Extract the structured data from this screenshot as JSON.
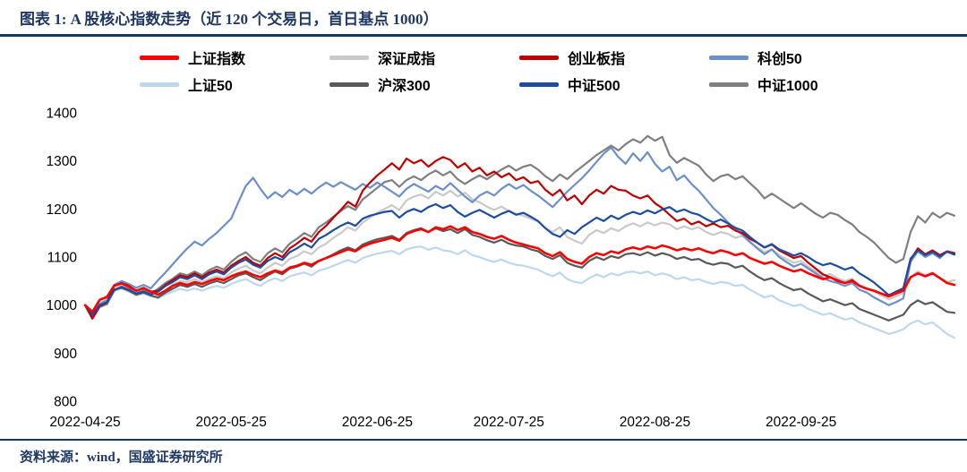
{
  "title": "图表 1: A 股核心指数走势（近 120 个交易日，首日基点 1000）",
  "footer": {
    "source": "资料来源：wind，国盛证券研究所"
  },
  "colors": {
    "navy_rule": "#17375E",
    "title_text": "#1F3864",
    "footer_text": "#1F3864"
  },
  "chart_data": {
    "type": "line",
    "title": "A 股核心指数走势（近 120 个交易日，首日基点 1000）",
    "baseline_note": "首日基点 1000",
    "n_points": 120,
    "ylim": [
      800,
      1400
    ],
    "y_ticks": [
      800,
      900,
      1000,
      1100,
      1200,
      1300,
      1400
    ],
    "x_label_dates": [
      "2022-04-25",
      "2022-05-25",
      "2022-06-25",
      "2022-07-25",
      "2022-08-25",
      "2022-09-25"
    ],
    "x_tick_indices": [
      0,
      20,
      40,
      58,
      78,
      98
    ],
    "grid": false,
    "legend_position": "top",
    "series": [
      {
        "name": "上证指数",
        "color": "#FF0000",
        "values": [
          1000,
          986,
          1011,
          1017,
          1041,
          1045,
          1038,
          1030,
          1035,
          1028,
          1022,
          1030,
          1040,
          1046,
          1042,
          1048,
          1044,
          1050,
          1055,
          1052,
          1060,
          1066,
          1070,
          1063,
          1058,
          1066,
          1072,
          1068,
          1078,
          1082,
          1088,
          1084,
          1092,
          1098,
          1104,
          1110,
          1116,
          1112,
          1122,
          1128,
          1132,
          1136,
          1140,
          1134,
          1148,
          1154,
          1158,
          1152,
          1162,
          1158,
          1164,
          1156,
          1162,
          1152,
          1148,
          1142,
          1138,
          1144,
          1136,
          1130,
          1126,
          1122,
          1118,
          1108,
          1102,
          1110,
          1096,
          1090,
          1086,
          1100,
          1108,
          1104,
          1112,
          1108,
          1116,
          1120,
          1116,
          1122,
          1118,
          1124,
          1120,
          1114,
          1118,
          1114,
          1118,
          1112,
          1108,
          1114,
          1110,
          1104,
          1108,
          1098,
          1092,
          1086,
          1090,
          1082,
          1076,
          1070,
          1074,
          1066,
          1060,
          1054,
          1058,
          1050,
          1046,
          1050,
          1040,
          1034,
          1030,
          1024,
          1018,
          1024,
          1030,
          1058,
          1066,
          1060,
          1066,
          1056,
          1046,
          1042
        ]
      },
      {
        "name": "深证成指",
        "color": "#C9C9C9",
        "values": [
          1000,
          982,
          1005,
          1012,
          1038,
          1042,
          1036,
          1028,
          1032,
          1026,
          1022,
          1032,
          1042,
          1050,
          1048,
          1054,
          1048,
          1055,
          1060,
          1056,
          1068,
          1076,
          1082,
          1072,
          1066,
          1078,
          1088,
          1082,
          1096,
          1102,
          1112,
          1106,
          1120,
          1128,
          1140,
          1150,
          1162,
          1155,
          1172,
          1182,
          1192,
          1200,
          1208,
          1198,
          1218,
          1226,
          1230,
          1222,
          1236,
          1228,
          1238,
          1226,
          1234,
          1220,
          1214,
          1205,
          1198,
          1205,
          1196,
          1190,
          1186,
          1180,
          1174,
          1160,
          1152,
          1162,
          1142,
          1134,
          1128,
          1146,
          1156,
          1150,
          1160,
          1154,
          1164,
          1170,
          1164,
          1172,
          1166,
          1172,
          1168,
          1158,
          1164,
          1158,
          1162,
          1152,
          1146,
          1152,
          1148,
          1140,
          1144,
          1130,
          1120,
          1110,
          1116,
          1104,
          1096,
          1088,
          1092,
          1080,
          1070,
          1060,
          1065,
          1056,
          1050,
          1055,
          1042,
          1034,
          1028,
          1020,
          1012,
          1018,
          1026,
          1058,
          1070,
          1062,
          1068,
          1056,
          1048,
          1052
        ]
      },
      {
        "name": "创业板指",
        "color": "#C00000",
        "values": [
          1000,
          972,
          998,
          1005,
          1040,
          1046,
          1040,
          1030,
          1036,
          1028,
          1030,
          1042,
          1052,
          1062,
          1058,
          1066,
          1058,
          1068,
          1074,
          1068,
          1082,
          1092,
          1100,
          1088,
          1082,
          1098,
          1108,
          1100,
          1118,
          1128,
          1140,
          1132,
          1152,
          1165,
          1182,
          1198,
          1215,
          1205,
          1238,
          1255,
          1270,
          1282,
          1295,
          1282,
          1305,
          1295,
          1302,
          1288,
          1300,
          1308,
          1302,
          1286,
          1295,
          1278,
          1286,
          1270,
          1278,
          1266,
          1274,
          1260,
          1266,
          1254,
          1258,
          1240,
          1228,
          1240,
          1218,
          1228,
          1210,
          1228,
          1240,
          1232,
          1248,
          1240,
          1238,
          1228,
          1222,
          1228,
          1212,
          1202,
          1188,
          1175,
          1180,
          1168,
          1174,
          1164,
          1170,
          1162,
          1165,
          1155,
          1150,
          1138,
          1130,
          1120,
          1126,
          1114,
          1106,
          1098,
          1102,
          1088,
          1076,
          1064,
          1058,
          1052,
          1046,
          1052,
          1040,
          1034,
          1030,
          1024,
          1020,
          1028,
          1035,
          1095,
          1118,
          1106,
          1114,
          1104,
          1112,
          1108
        ]
      },
      {
        "name": "科创50",
        "color": "#6A8FCB",
        "values": [
          1000,
          978,
          1002,
          1010,
          1042,
          1050,
          1044,
          1036,
          1042,
          1035,
          1052,
          1068,
          1085,
          1102,
          1118,
          1132,
          1124,
          1138,
          1150,
          1165,
          1180,
          1215,
          1248,
          1265,
          1242,
          1222,
          1235,
          1225,
          1240,
          1230,
          1242,
          1232,
          1245,
          1255,
          1246,
          1256,
          1248,
          1240,
          1252,
          1244,
          1255,
          1246,
          1236,
          1226,
          1242,
          1252,
          1244,
          1236,
          1248,
          1240,
          1254,
          1240,
          1226,
          1214,
          1228,
          1236,
          1228,
          1242,
          1252,
          1242,
          1250,
          1238,
          1228,
          1216,
          1204,
          1220,
          1236,
          1250,
          1264,
          1280,
          1298,
          1315,
          1328,
          1308,
          1294,
          1316,
          1300,
          1318,
          1294,
          1278,
          1288,
          1260,
          1270,
          1252,
          1238,
          1220,
          1202,
          1188,
          1172,
          1158,
          1146,
          1132,
          1118,
          1106,
          1116,
          1100,
          1090,
          1080,
          1086,
          1076,
          1066,
          1056,
          1050,
          1046,
          1040,
          1046,
          1032,
          1026,
          1016,
          1008,
          1000,
          1006,
          1014,
          1090,
          1112,
          1100,
          1108,
          1098,
          1112,
          1108
        ]
      },
      {
        "name": "上证50",
        "color": "#BDD7EE",
        "values": [
          1000,
          988,
          1004,
          1008,
          1030,
          1034,
          1028,
          1020,
          1024,
          1018,
          1014,
          1022,
          1028,
          1034,
          1030,
          1035,
          1030,
          1036,
          1040,
          1036,
          1044,
          1050,
          1054,
          1046,
          1040,
          1050,
          1056,
          1050,
          1060,
          1064,
          1068,
          1062,
          1072,
          1076,
          1082,
          1088,
          1094,
          1088,
          1098,
          1103,
          1107,
          1110,
          1113,
          1106,
          1116,
          1120,
          1122,
          1115,
          1120,
          1114,
          1112,
          1106,
          1114,
          1104,
          1100,
          1094,
          1090,
          1095,
          1088,
          1084,
          1082,
          1078,
          1074,
          1066,
          1060,
          1068,
          1054,
          1048,
          1046,
          1056,
          1064,
          1058,
          1066,
          1062,
          1068,
          1070,
          1066,
          1070,
          1062,
          1066,
          1062,
          1054,
          1058,
          1052,
          1054,
          1048,
          1044,
          1048,
          1046,
          1040,
          1042,
          1032,
          1024,
          1016,
          1020,
          1010,
          1004,
          998,
          1001,
          992,
          986,
          980,
          983,
          976,
          970,
          973,
          964,
          958,
          952,
          946,
          940,
          944,
          950,
          962,
          968,
          960,
          964,
          952,
          940,
          932
        ]
      },
      {
        "name": "沪深300",
        "color": "#595959",
        "values": [
          1000,
          985,
          1002,
          1008,
          1032,
          1036,
          1030,
          1022,
          1026,
          1020,
          1016,
          1026,
          1034,
          1042,
          1038,
          1044,
          1038,
          1045,
          1050,
          1046,
          1054,
          1062,
          1066,
          1058,
          1052,
          1062,
          1070,
          1064,
          1076,
          1080,
          1086,
          1080,
          1092,
          1098,
          1106,
          1114,
          1120,
          1114,
          1126,
          1132,
          1137,
          1140,
          1144,
          1136,
          1150,
          1156,
          1160,
          1152,
          1160,
          1154,
          1158,
          1150,
          1158,
          1146,
          1142,
          1135,
          1130,
          1136,
          1128,
          1124,
          1122,
          1116,
          1112,
          1102,
          1096,
          1104,
          1088,
          1082,
          1078,
          1092,
          1100,
          1094,
          1102,
          1098,
          1106,
          1108,
          1104,
          1110,
          1103,
          1108,
          1104,
          1096,
          1100,
          1094,
          1096,
          1088,
          1084,
          1088,
          1086,
          1078,
          1082,
          1070,
          1060,
          1052,
          1056,
          1046,
          1038,
          1031,
          1034,
          1024,
          1016,
          1008,
          1012,
          1006,
          1000,
          1004,
          992,
          986,
          980,
          974,
          968,
          974,
          980,
          1000,
          1010,
          1002,
          1006,
          996,
          986,
          984
        ]
      },
      {
        "name": "中证500",
        "color": "#1C4DA1",
        "values": [
          1000,
          980,
          1000,
          1006,
          1032,
          1038,
          1032,
          1024,
          1028,
          1022,
          1028,
          1040,
          1048,
          1058,
          1054,
          1062,
          1054,
          1064,
          1070,
          1064,
          1078,
          1088,
          1095,
          1084,
          1078,
          1092,
          1100,
          1094,
          1110,
          1118,
          1128,
          1120,
          1138,
          1146,
          1156,
          1165,
          1172,
          1165,
          1180,
          1186,
          1190,
          1194,
          1196,
          1182,
          1194,
          1200,
          1194,
          1204,
          1210,
          1202,
          1208,
          1194,
          1184,
          1192,
          1198,
          1190,
          1182,
          1190,
          1196,
          1188,
          1192,
          1184,
          1175,
          1160,
          1148,
          1142,
          1156,
          1148,
          1162,
          1172,
          1182,
          1175,
          1186,
          1179,
          1188,
          1194,
          1189,
          1197,
          1191,
          1199,
          1204,
          1194,
          1199,
          1192,
          1188,
          1179,
          1172,
          1178,
          1170,
          1161,
          1155,
          1142,
          1130,
          1120,
          1127,
          1116,
          1110,
          1103,
          1108,
          1100,
          1090,
          1083,
          1087,
          1081,
          1074,
          1079,
          1066,
          1057,
          1047,
          1034,
          1021,
          1027,
          1034,
          1097,
          1114,
          1104,
          1111,
          1101,
          1111,
          1105
        ]
      },
      {
        "name": "中证1000",
        "color": "#7F7F7F",
        "values": [
          1000,
          972,
          996,
          1002,
          1030,
          1038,
          1032,
          1024,
          1030,
          1024,
          1034,
          1046,
          1055,
          1066,
          1062,
          1070,
          1062,
          1073,
          1080,
          1074,
          1090,
          1102,
          1110,
          1096,
          1090,
          1108,
          1118,
          1110,
          1128,
          1138,
          1150,
          1142,
          1162,
          1172,
          1184,
          1196,
          1206,
          1198,
          1220,
          1232,
          1244,
          1256,
          1260,
          1246,
          1260,
          1268,
          1260,
          1272,
          1280,
          1270,
          1278,
          1262,
          1252,
          1262,
          1270,
          1262,
          1272,
          1282,
          1290,
          1280,
          1288,
          1292,
          1282,
          1268,
          1258,
          1272,
          1262,
          1276,
          1288,
          1300,
          1312,
          1322,
          1332,
          1322,
          1335,
          1345,
          1338,
          1352,
          1342,
          1350,
          1312,
          1296,
          1306,
          1298,
          1290,
          1272,
          1258,
          1268,
          1272,
          1262,
          1268,
          1254,
          1240,
          1222,
          1232,
          1222,
          1212,
          1202,
          1212,
          1201,
          1190,
          1182,
          1192,
          1188,
          1177,
          1168,
          1152,
          1142,
          1130,
          1114,
          1098,
          1088,
          1096,
          1152,
          1185,
          1172,
          1192,
          1182,
          1192,
          1186
        ]
      }
    ]
  }
}
